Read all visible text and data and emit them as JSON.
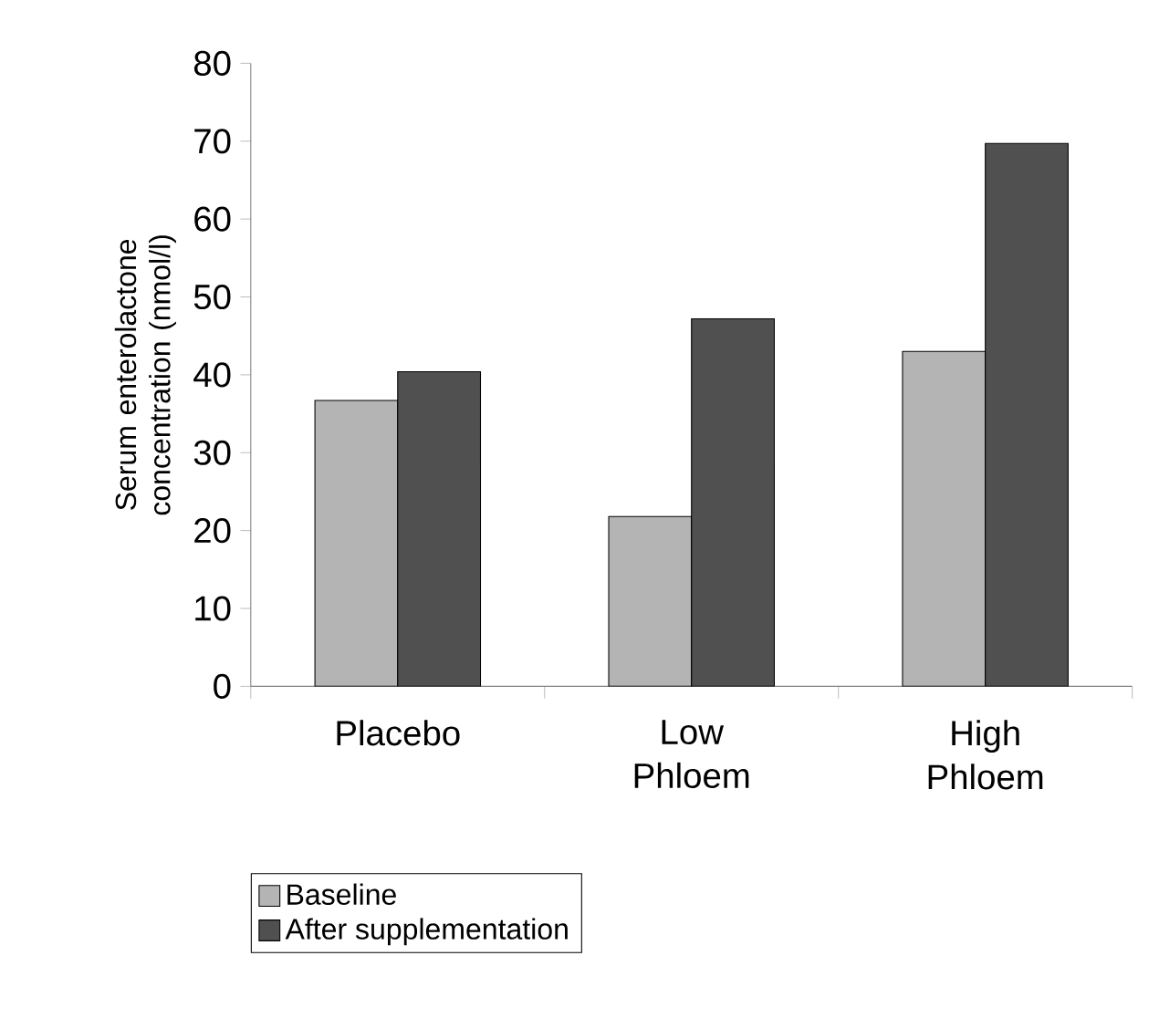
{
  "chart_data": {
    "type": "bar",
    "ylabel": "Serum enterolactone concentration (nmol/l)",
    "categories": [
      "Placebo",
      "Low Phloem",
      "High Phloem"
    ],
    "series": [
      {
        "name": "Baseline",
        "color": "#b4b4b4",
        "values": [
          36.7,
          21.8,
          43.0
        ]
      },
      {
        "name": "After supplementation",
        "color": "#505050",
        "values": [
          40.4,
          47.2,
          69.7
        ]
      }
    ],
    "ylim": [
      0,
      80
    ],
    "yticks": [
      0,
      10,
      20,
      30,
      40,
      50,
      60,
      70,
      80
    ],
    "grid": false,
    "legend": "bottom"
  }
}
